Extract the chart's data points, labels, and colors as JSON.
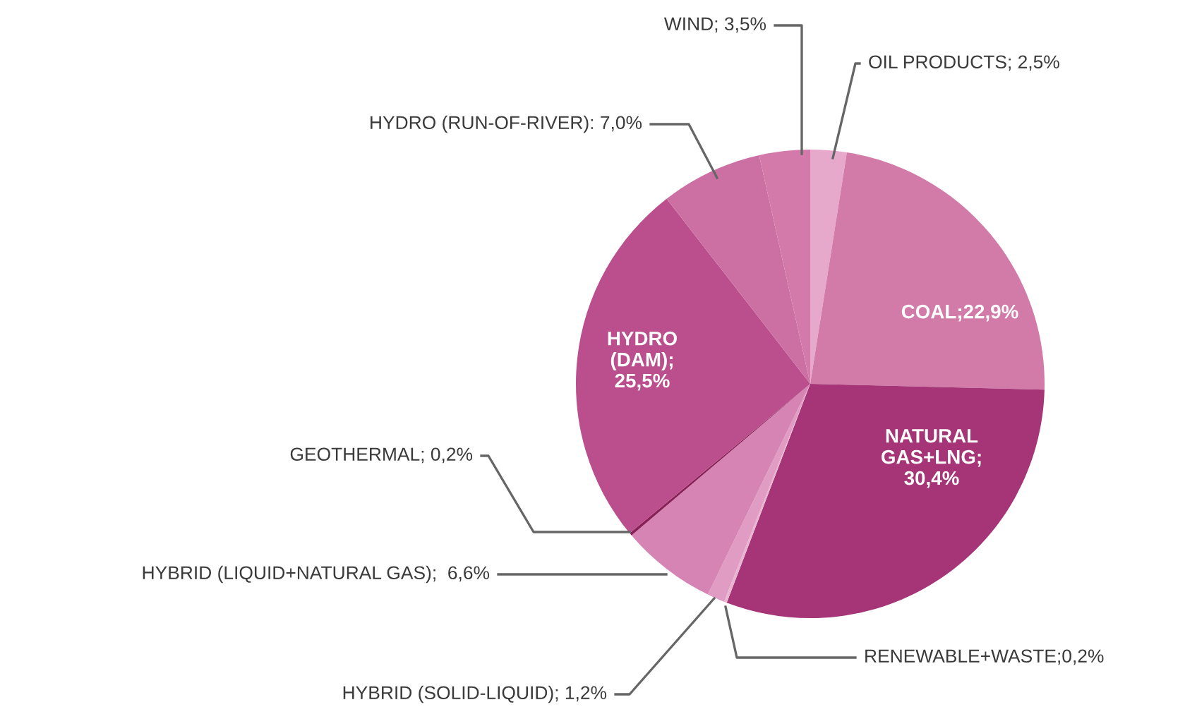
{
  "chart_data": {
    "type": "pie",
    "categories": [
      "OIL PRODUCTS; 2,5%",
      "COAL;22,9%",
      "NATURAL\nGAS+LNG;\n30,4%",
      "RENEWABLE+WASTE;0,2%",
      "HYBRID (SOLID-LIQUID); 1,2%",
      "HYBRID (LIQUID+NATURAL GAS);  6,6%",
      "GEOTHERMAL; 0,2%",
      "HYDRO\n(DAM);\n25,5%",
      "HYDRO (RUN-OF-RIVER): 7,0%",
      "WIND; 3,5%"
    ],
    "values": [
      2.5,
      22.9,
      30.4,
      0.2,
      1.2,
      6.6,
      0.2,
      25.5,
      7.0,
      3.5
    ],
    "colors": [
      "#e6a9cc",
      "#d27aa8",
      "#a63577",
      "#e8b5d2",
      "#e09cc3",
      "#d584b3",
      "#8a2058",
      "#bb4e8c",
      "#cc6fa3",
      "#d47aab"
    ],
    "legend": false
  }
}
